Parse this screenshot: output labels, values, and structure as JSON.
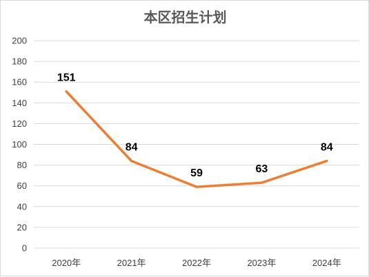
{
  "chart_data": {
    "type": "line",
    "title": "本区招生计划",
    "categories": [
      "2020年",
      "2021年",
      "2022年",
      "2023年",
      "2024年"
    ],
    "series": [
      {
        "values": [
          151,
          84,
          59,
          63,
          84
        ]
      }
    ],
    "data_labels": [
      "151",
      "84",
      "59",
      "63",
      "84"
    ],
    "y_ticks": [
      "0",
      "20",
      "40",
      "60",
      "80",
      "100",
      "120",
      "140",
      "160",
      "180",
      "200"
    ],
    "ylim": [
      0,
      200
    ],
    "grid": true,
    "legend": "none",
    "line_color": "#ED7D31",
    "grid_color": "#D9D9D9"
  }
}
